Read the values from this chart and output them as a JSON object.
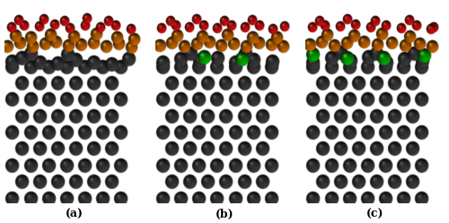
{
  "figure_width": 5.0,
  "figure_height": 2.49,
  "dpi": 100,
  "background_color": "#ffffff",
  "panel_labels": [
    "(a)",
    "(b)",
    "(c)"
  ],
  "label_fontsize": 9,
  "label_fontweight": "bold",
  "fe_color_base": [
    0.22,
    0.22,
    0.22
  ],
  "fe_color_light": [
    0.45,
    0.45,
    0.45
  ],
  "o_color_base": [
    0.8,
    0.05,
    0.05
  ],
  "o_color_light": [
    1.0,
    0.4,
    0.3
  ],
  "feo_color_base": [
    0.75,
    0.38,
    0.0
  ],
  "feo_color_light": [
    1.0,
    0.7,
    0.2
  ],
  "si_color_base": [
    0.0,
    0.65,
    0.0
  ],
  "si_color_light": [
    0.4,
    1.0,
    0.4
  ],
  "border_color": "#888888",
  "panel_bg": "#f0f0f0"
}
